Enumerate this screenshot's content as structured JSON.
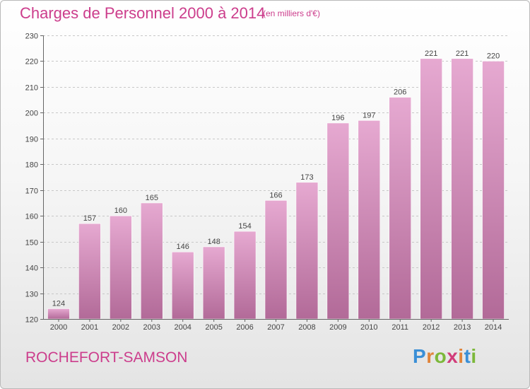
{
  "header": {
    "title": "Charges de Personnel 2000 à 2014",
    "subtitle": "(en milliers d'€)"
  },
  "footer": {
    "city": "ROCHEFORT-SAMSON",
    "logo": "Proxiti"
  },
  "colors": {
    "accent": "#cc3d8c",
    "bar_top": "#e6a9d1",
    "bar_bottom": "#b26a98"
  },
  "chart_data": {
    "type": "bar",
    "title": "Charges de Personnel 2000 à 2014",
    "subtitle": "(en milliers d'€)",
    "categories": [
      "2000",
      "2001",
      "2002",
      "2003",
      "2004",
      "2005",
      "2006",
      "2007",
      "2008",
      "2009",
      "2010",
      "2011",
      "2012",
      "2013",
      "2014"
    ],
    "values": [
      124,
      157,
      160,
      165,
      146,
      148,
      154,
      166,
      173,
      196,
      197,
      206,
      221,
      221,
      220
    ],
    "ylim": [
      120,
      230
    ],
    "yticks": [
      120,
      130,
      140,
      150,
      160,
      170,
      180,
      190,
      200,
      210,
      220,
      230
    ],
    "grid": true,
    "xlabel": "",
    "ylabel": ""
  }
}
